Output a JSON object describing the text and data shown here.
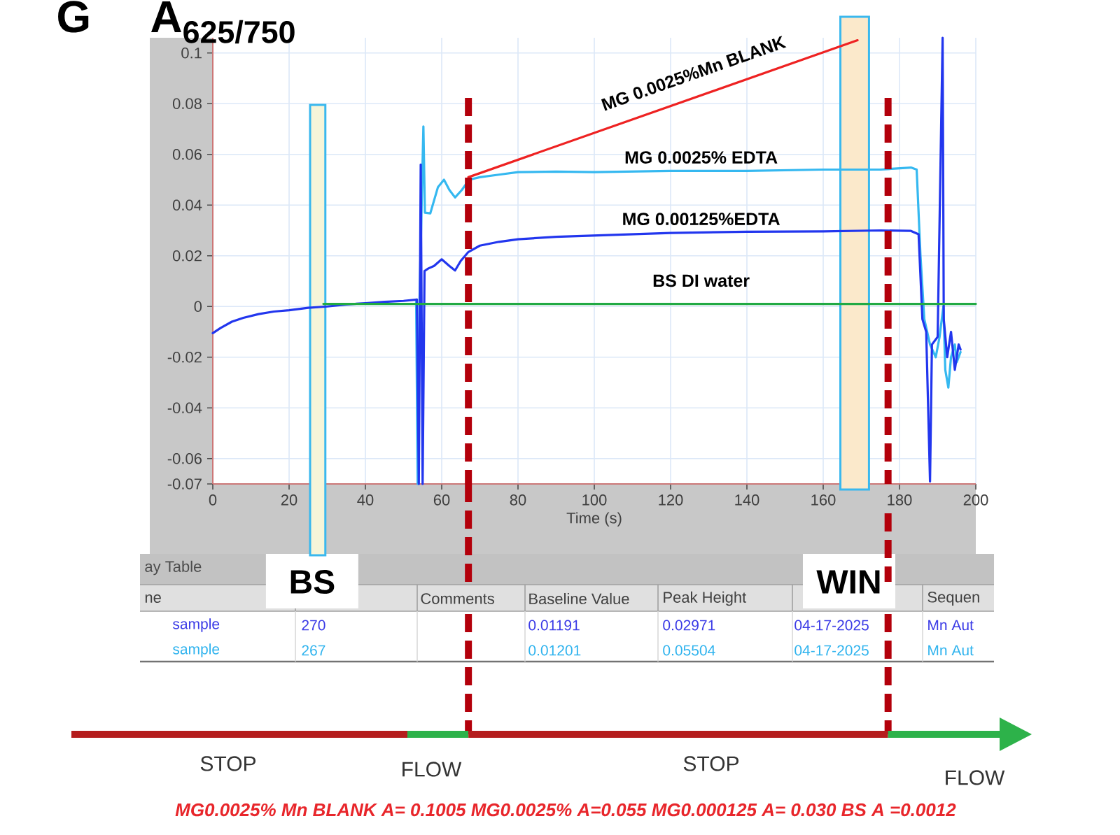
{
  "chart_data": {
    "type": "line",
    "title": "A$_{625/750}$",
    "xlabel": "Time (s)",
    "xlim": [
      0,
      200
    ],
    "xticks": [
      0,
      20,
      40,
      60,
      80,
      100,
      120,
      140,
      160,
      180,
      200
    ],
    "ylim": [
      -0.07,
      0.106
    ],
    "yticks": [
      -0.07,
      -0.06,
      -0.04,
      -0.02,
      0,
      0.02,
      0.04,
      0.06,
      0.08,
      0.1
    ],
    "grid": true,
    "series": [
      {
        "name": "MG 0.0025%Mn BLANK",
        "color": "#ee2222",
        "x": [
          67,
          169
        ],
        "values": [
          0.051,
          0.105
        ]
      },
      {
        "name": "MG 0.0025% EDTA",
        "color": "#35b8f0",
        "x": [
          53.3,
          53.7,
          54.2,
          55.2,
          55.6,
          57,
          59,
          60.6,
          62,
          63.5,
          65.3,
          67.2,
          70,
          75,
          80,
          90,
          100,
          120,
          140,
          160,
          175,
          183,
          184.5,
          185.5,
          186.5,
          188,
          189.5,
          190.5,
          191.5,
          192,
          192.8,
          193.5,
          194.5,
          195,
          196
        ],
        "values": [
          0.0027,
          -0.07,
          0.003,
          0.071,
          0.037,
          0.0367,
          0.047,
          0.05,
          0.046,
          0.043,
          0.046,
          0.05,
          0.051,
          0.052,
          0.053,
          0.0532,
          0.053,
          0.0535,
          0.0535,
          0.054,
          0.054,
          0.0548,
          0.054,
          0.02,
          -0.005,
          -0.015,
          -0.02,
          -0.012,
          0,
          -0.025,
          -0.032,
          -0.02,
          -0.015,
          -0.022,
          -0.018
        ]
      },
      {
        "name": "MG 0.00125%EDTA",
        "color": "#2236ee",
        "x": [
          0,
          2,
          5,
          8,
          12,
          16,
          20,
          25,
          30,
          35,
          40,
          45,
          50,
          53.5,
          54,
          54.5,
          55,
          55.5,
          56.5,
          58,
          60,
          62,
          63.5,
          65,
          67,
          70,
          75,
          80,
          90,
          100,
          120,
          140,
          160,
          175,
          183,
          185,
          186,
          187,
          188,
          188.5,
          190,
          191.3,
          191.6,
          192.5,
          193.5,
          194.5,
          195.5,
          196
        ],
        "values": [
          -0.0105,
          -0.0085,
          -0.006,
          -0.0045,
          -0.003,
          -0.002,
          -0.0015,
          -0.0005,
          0,
          0.0008,
          0.0013,
          0.0018,
          0.0022,
          0.0027,
          -0.07,
          0.056,
          -0.07,
          0.014,
          0.015,
          0.016,
          0.0186,
          0.016,
          0.0142,
          0.018,
          0.0215,
          0.024,
          0.0255,
          0.0265,
          0.0275,
          0.028,
          0.029,
          0.0295,
          0.0296,
          0.03,
          0.0298,
          0.0285,
          -0.005,
          -0.01,
          -0.069,
          -0.015,
          -0.012,
          0.106,
          -0.005,
          -0.02,
          -0.01,
          -0.025,
          -0.015,
          -0.017
        ]
      },
      {
        "name": "BS  DI water",
        "color": "#22aa44",
        "x": [
          29,
          200
        ],
        "values": [
          0.001,
          0.001
        ]
      }
    ],
    "bands": [
      {
        "axis": "x",
        "from": 25.5,
        "to": 29.5,
        "label": "BS",
        "color": "#f6f5d9"
      },
      {
        "axis": "x",
        "from": 164.5,
        "to": 172,
        "label": "WIN",
        "color": "#fbe9cb"
      }
    ],
    "ref_lines": [
      {
        "axis": "x",
        "value": 67,
        "color": "#b3000b",
        "line_style": "dashed"
      },
      {
        "axis": "x",
        "value": 177,
        "color": "#b3000b",
        "line_style": "dashed"
      }
    ],
    "annotations": [
      "G",
      "STOP",
      "FLOW",
      "STOP",
      "FLOW",
      "MG0.0025% Mn BLANK A= 0.1005 MG0.0025% A=0.055 MG0.000125 A= 0.030 BS A =0.0012",
      "ay Table",
      "ne",
      "Comments",
      "Baseline Value",
      "Peak Height",
      "Sequen",
      "sample",
      "270",
      "0.01191",
      "0.02971",
      "04-17-2025",
      "Mn Aut",
      "sample",
      "267",
      "0.01201",
      "0.05504",
      "04-17-2025",
      "Mn Aut"
    ]
  }
}
